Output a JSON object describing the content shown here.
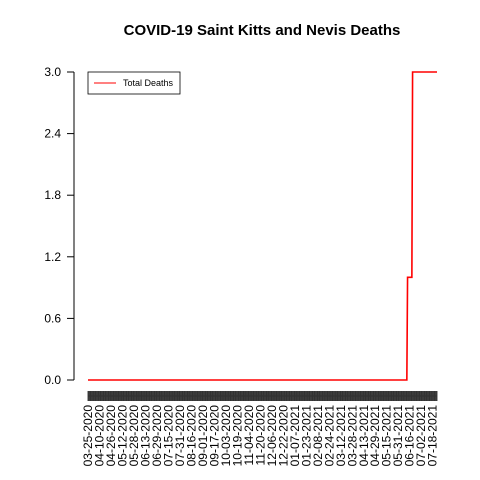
{
  "chart_data": {
    "type": "line",
    "title": "COVID-19 Saint Kitts and Nevis Deaths",
    "xlabel": "",
    "ylabel": "",
    "ylim": [
      0,
      3
    ],
    "y_ticks": [
      "0.0",
      "0.6",
      "1.2",
      "1.8",
      "2.4",
      "3.0"
    ],
    "x_tick_labels": [
      "03-25-2020",
      "04-10-2020",
      "04-26-2020",
      "05-12-2020",
      "05-28-2020",
      "06-13-2020",
      "06-29-2020",
      "07-15-2020",
      "07-31-2020",
      "08-16-2020",
      "09-01-2020",
      "09-17-2020",
      "10-03-2020",
      "10-19-2020",
      "11-04-2020",
      "11-20-2020",
      "12-06-2020",
      "12-22-2020",
      "01-07-2021",
      "01-23-2021",
      "02-08-2021",
      "02-24-2021",
      "03-12-2021",
      "03-28-2021",
      "04-13-2021",
      "04-29-2021",
      "05-15-2021",
      "05-31-2021",
      "06-16-2021",
      "07-02-2021",
      "07-18-2021"
    ],
    "legend": {
      "position": "top-left",
      "entries": [
        {
          "label": "Total Deaths",
          "color": "#ff0000"
        }
      ]
    },
    "series": [
      {
        "name": "Total Deaths",
        "color": "#ff0000",
        "x": [
          "03-25-2020",
          "06-12-2021",
          "06-13-2021",
          "06-19-2021",
          "06-20-2021",
          "07-24-2021"
        ],
        "y": [
          0,
          0,
          1,
          1,
          3,
          3
        ]
      }
    ]
  }
}
